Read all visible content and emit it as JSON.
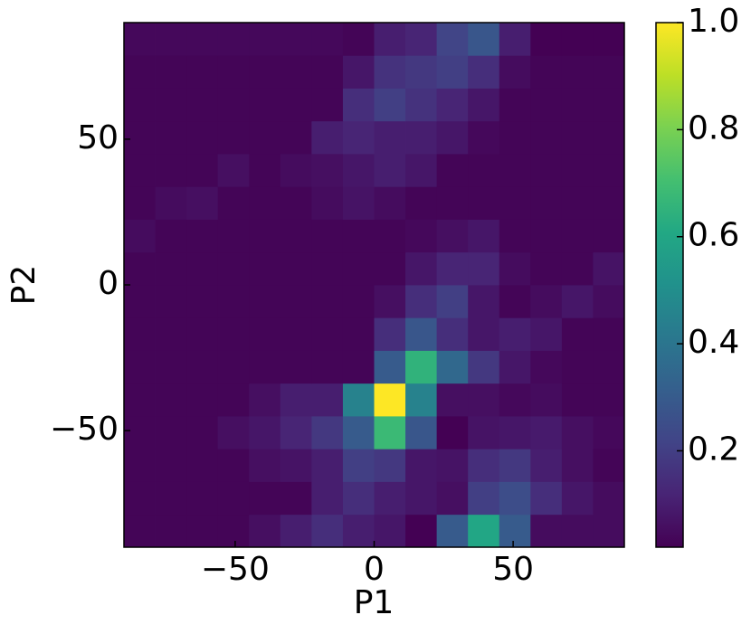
{
  "chart_data": {
    "type": "heatmap",
    "xlabel": "P1",
    "ylabel": "P2",
    "colormap": "viridis",
    "xlim": [
      -90,
      90
    ],
    "ylim": [
      -90,
      90
    ],
    "clim": [
      0.02,
      1.0
    ],
    "xticks": [
      {
        "value": -50,
        "label": "−50"
      },
      0,
      50
    ],
    "yticks": [
      {
        "value": -50,
        "label": "−50"
      },
      0,
      50
    ],
    "cticks": [
      0.2,
      0.4,
      0.6,
      0.8,
      {
        "value": 1.0,
        "label": "1.0"
      }
    ],
    "z": [
      [
        0.03,
        0.03,
        0.03,
        0.03,
        0.06,
        0.1,
        0.15,
        0.1,
        0.08,
        0.02,
        0.3,
        0.6,
        0.3,
        0.05,
        0.05,
        0.05
      ],
      [
        0.03,
        0.03,
        0.03,
        0.03,
        0.03,
        0.03,
        0.1,
        0.15,
        0.1,
        0.08,
        0.06,
        0.2,
        0.25,
        0.15,
        0.08,
        0.05
      ],
      [
        0.03,
        0.03,
        0.03,
        0.03,
        0.06,
        0.07,
        0.1,
        0.2,
        0.18,
        0.08,
        0.07,
        0.15,
        0.18,
        0.1,
        0.06,
        0.03
      ],
      [
        0.03,
        0.03,
        0.03,
        0.06,
        0.08,
        0.12,
        0.18,
        0.3,
        0.68,
        0.28,
        0.02,
        0.07,
        0.08,
        0.09,
        0.06,
        0.04
      ],
      [
        0.03,
        0.03,
        0.03,
        0.03,
        0.06,
        0.1,
        0.1,
        0.45,
        1.0,
        0.45,
        0.06,
        0.06,
        0.04,
        0.05,
        0.03,
        0.03
      ],
      [
        0.03,
        0.03,
        0.03,
        0.03,
        0.03,
        0.03,
        0.03,
        0.03,
        0.3,
        0.65,
        0.35,
        0.18,
        0.08,
        0.04,
        0.03,
        0.03
      ],
      [
        0.03,
        0.03,
        0.03,
        0.03,
        0.03,
        0.03,
        0.03,
        0.03,
        0.15,
        0.28,
        0.15,
        0.08,
        0.1,
        0.08,
        0.03,
        0.03
      ],
      [
        0.03,
        0.03,
        0.03,
        0.03,
        0.03,
        0.03,
        0.03,
        0.03,
        0.06,
        0.15,
        0.2,
        0.08,
        0.03,
        0.05,
        0.08,
        0.05
      ],
      [
        0.03,
        0.03,
        0.03,
        0.03,
        0.03,
        0.03,
        0.03,
        0.03,
        0.03,
        0.08,
        0.12,
        0.12,
        0.05,
        0.03,
        0.03,
        0.07
      ],
      [
        0.05,
        0.03,
        0.03,
        0.03,
        0.03,
        0.03,
        0.03,
        0.03,
        0.03,
        0.04,
        0.06,
        0.08,
        0.03,
        0.03,
        0.03,
        0.03
      ],
      [
        0.03,
        0.05,
        0.06,
        0.03,
        0.03,
        0.03,
        0.05,
        0.07,
        0.05,
        0.03,
        0.03,
        0.03,
        0.03,
        0.03,
        0.03,
        0.03
      ],
      [
        0.03,
        0.03,
        0.03,
        0.06,
        0.03,
        0.05,
        0.06,
        0.08,
        0.1,
        0.08,
        0.03,
        0.03,
        0.03,
        0.03,
        0.03,
        0.03
      ],
      [
        0.03,
        0.03,
        0.03,
        0.03,
        0.03,
        0.03,
        0.1,
        0.12,
        0.1,
        0.1,
        0.08,
        0.04,
        0.03,
        0.03,
        0.03,
        0.03
      ],
      [
        0.03,
        0.03,
        0.03,
        0.03,
        0.03,
        0.03,
        0.03,
        0.15,
        0.2,
        0.16,
        0.12,
        0.08,
        0.03,
        0.03,
        0.03,
        0.03
      ],
      [
        0.03,
        0.03,
        0.03,
        0.03,
        0.03,
        0.03,
        0.03,
        0.08,
        0.16,
        0.18,
        0.2,
        0.15,
        0.05,
        0.03,
        0.03,
        0.03
      ],
      [
        0.04,
        0.04,
        0.04,
        0.04,
        0.04,
        0.04,
        0.04,
        0.03,
        0.1,
        0.12,
        0.22,
        0.28,
        0.1,
        0.02,
        0.02,
        0.02
      ]
    ]
  }
}
